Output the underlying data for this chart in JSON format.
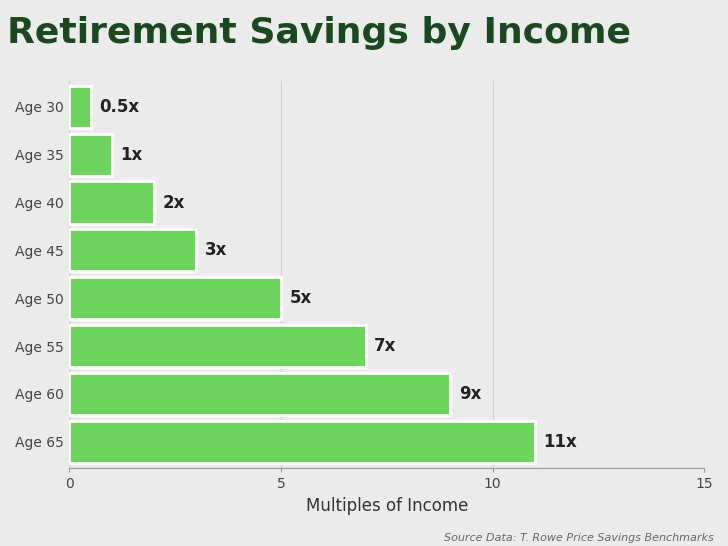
{
  "title": "Retirement Savings by Income",
  "categories": [
    "Age 30",
    "Age 35",
    "Age 40",
    "Age 45",
    "Age 50",
    "Age 55",
    "Age 60",
    "Age 65"
  ],
  "values": [
    0.5,
    1,
    2,
    3,
    5,
    7,
    9,
    11
  ],
  "labels": [
    "0.5x",
    "1x",
    "2x",
    "3x",
    "5x",
    "7x",
    "9x",
    "11x"
  ],
  "bar_color": "#6ed45f",
  "bar_edge_color": "#ffffff",
  "xlabel": "Multiples of Income",
  "xlim": [
    0,
    15
  ],
  "xticks": [
    0,
    5,
    10,
    15
  ],
  "background_color": "#ebebeb",
  "title_color": "#1b4820",
  "axis_label_color": "#333333",
  "tick_label_color": "#444444",
  "bar_label_color": "#222222",
  "ytick_label_color": "#444444",
  "source_text": "Source Data: T. Rowe Price Savings Benchmarks",
  "title_fontsize": 26,
  "xlabel_fontsize": 12,
  "bar_label_fontsize": 12,
  "ytick_fontsize": 10,
  "xtick_fontsize": 10,
  "source_fontsize": 8,
  "bar_height": 0.88
}
